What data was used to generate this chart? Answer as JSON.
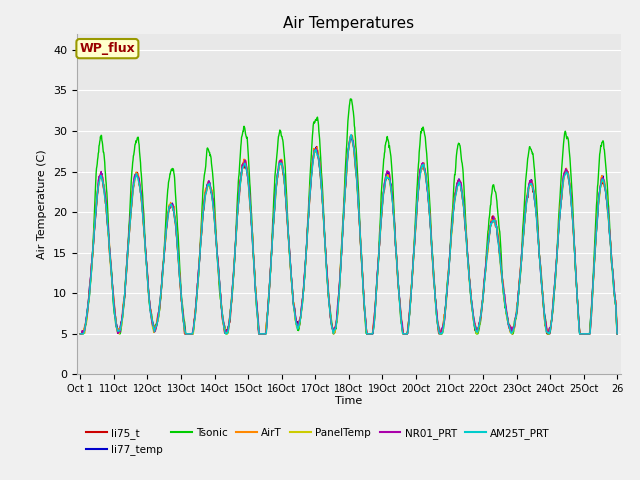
{
  "title": "Air Temperatures",
  "xlabel": "Time",
  "ylabel": "Air Temperature (C)",
  "ylim": [
    0,
    42
  ],
  "yticks": [
    0,
    5,
    10,
    15,
    20,
    25,
    30,
    35,
    40
  ],
  "xt_labels": [
    "Oct 1",
    "11Oct",
    "12Oct",
    "13Oct",
    "14Oct",
    "15Oct",
    "16Oct",
    "17Oct",
    "18Oct",
    "19Oct",
    "20Oct",
    "21Oct",
    "22Oct",
    "23Oct",
    "24Oct",
    "25Oct",
    "26"
  ],
  "series_colors": {
    "li75_t": "#cc0000",
    "li77_temp": "#0000cc",
    "Tsonic": "#00cc00",
    "AirT": "#ff8800",
    "PanelTemp": "#cccc00",
    "NR01_PRT": "#aa00aa",
    "AM25T_PRT": "#00cccc"
  },
  "legend_label": "WP_flux",
  "background_color": "#e8e8e8",
  "grid_color": "#ffffff",
  "fig_facecolor": "#f0f0f0"
}
